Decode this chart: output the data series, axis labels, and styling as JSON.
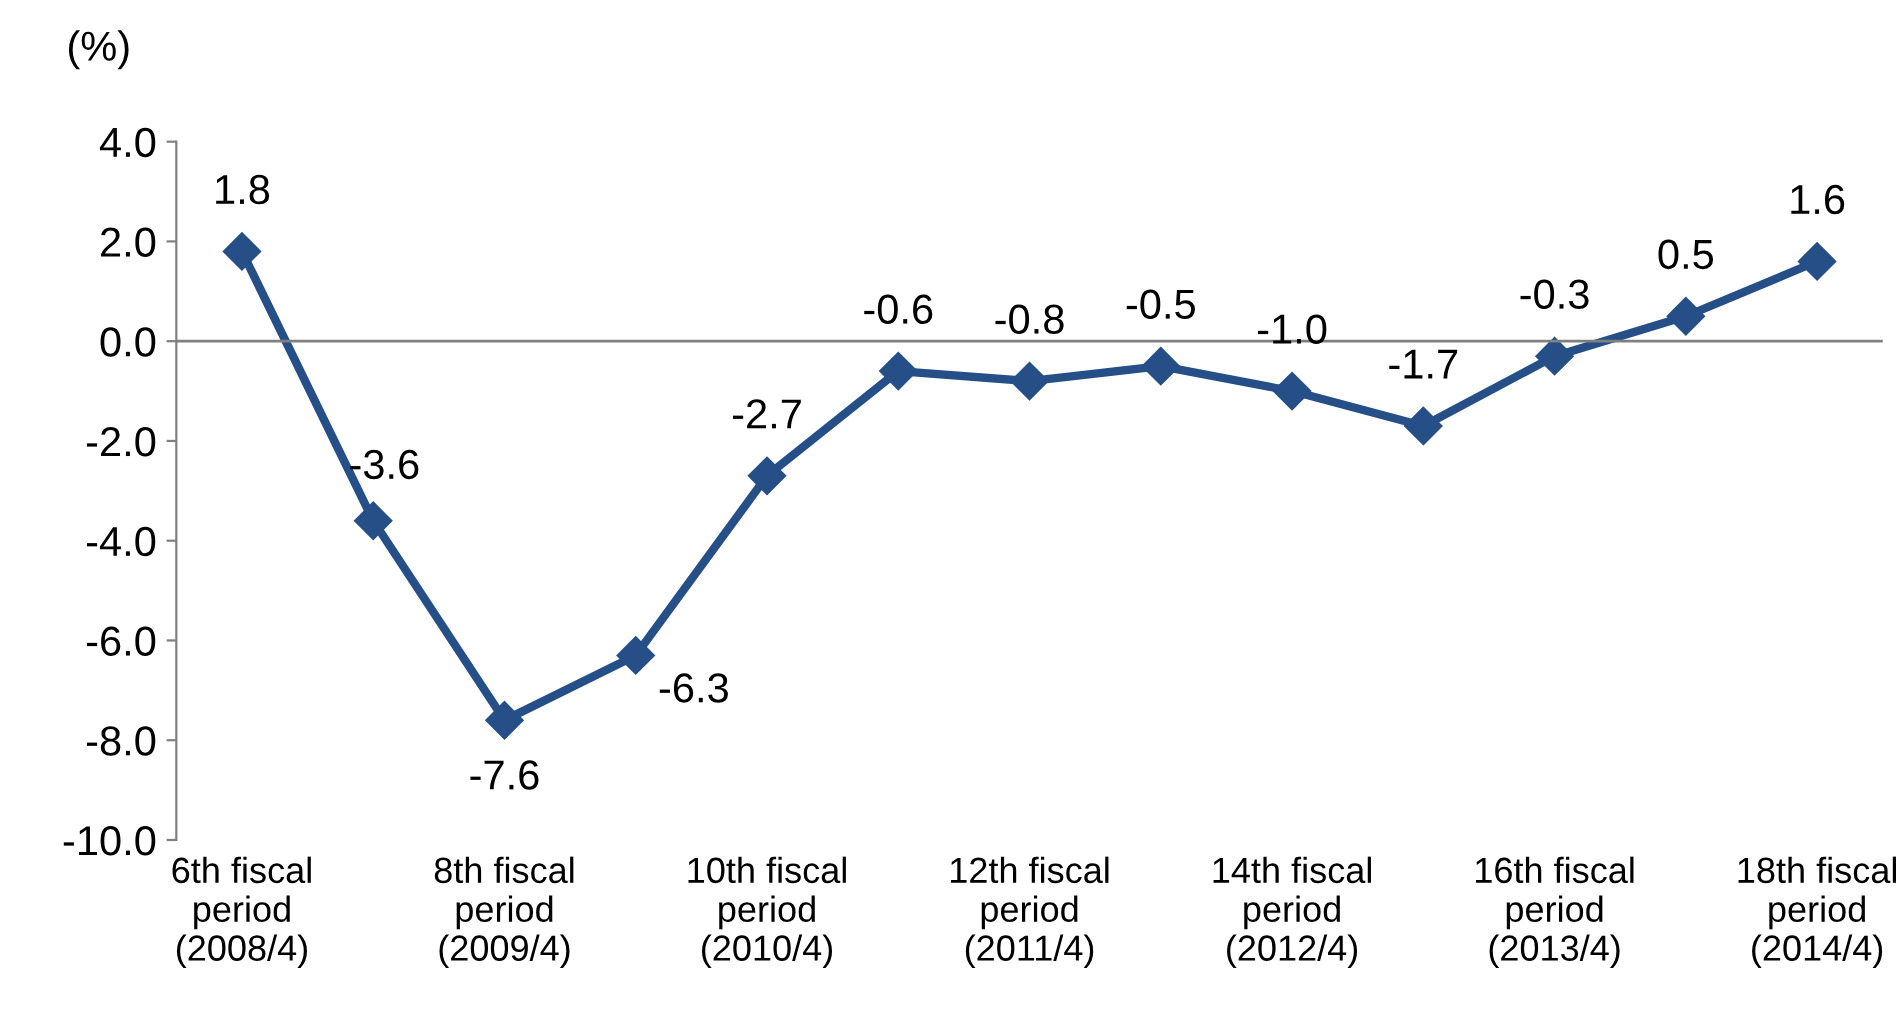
{
  "chart_data": {
    "type": "line",
    "ylabel": "(%)",
    "categories": [
      "6th fiscal\nperiod\n(2008/4)",
      null,
      "8th fiscal\nperiod\n(2009/4)",
      null,
      "10th fiscal\nperiod\n(2010/4)",
      null,
      "12th fiscal\nperiod\n(2011/4)",
      null,
      "14th fiscal\nperiod\n(2012/4)",
      null,
      "16th fiscal\nperiod\n(2013/4)",
      null,
      "18th fiscal\nperiod\n(2014/4)"
    ],
    "series": [
      {
        "color": "#254f86",
        "values": [
          1.8,
          -3.6,
          -7.6,
          -6.3,
          -2.7,
          -0.6,
          -0.8,
          -0.5,
          -1.0,
          -1.7,
          -0.3,
          0.5,
          1.6
        ]
      }
    ],
    "ylim": [
      -10,
      4
    ],
    "yticks": [
      {
        "value": -10,
        "label": "-10.0"
      },
      {
        "value": -8,
        "label": "-8.0"
      },
      {
        "value": -6,
        "label": "-6.0"
      },
      {
        "value": -4,
        "label": "-4.0"
      },
      {
        "value": -2,
        "label": "-2.0"
      },
      {
        "value": 0,
        "label": "0.0"
      },
      {
        "value": 2,
        "label": "2.0"
      },
      {
        "value": 4,
        "label": "4.0"
      }
    ],
    "ref_lines": [
      {
        "axis": "y",
        "value": 0,
        "color": "#808080"
      }
    ],
    "value_labels": [
      "1.8",
      "-3.6",
      "-7.6",
      "-6.3",
      "-2.7",
      "-0.6",
      "-0.8",
      "-0.5",
      "-1.0",
      "-1.7",
      "-0.3",
      "0.5",
      "1.6"
    ],
    "marker": "diamond",
    "line_style": "solid",
    "grid": false,
    "legend": false
  }
}
